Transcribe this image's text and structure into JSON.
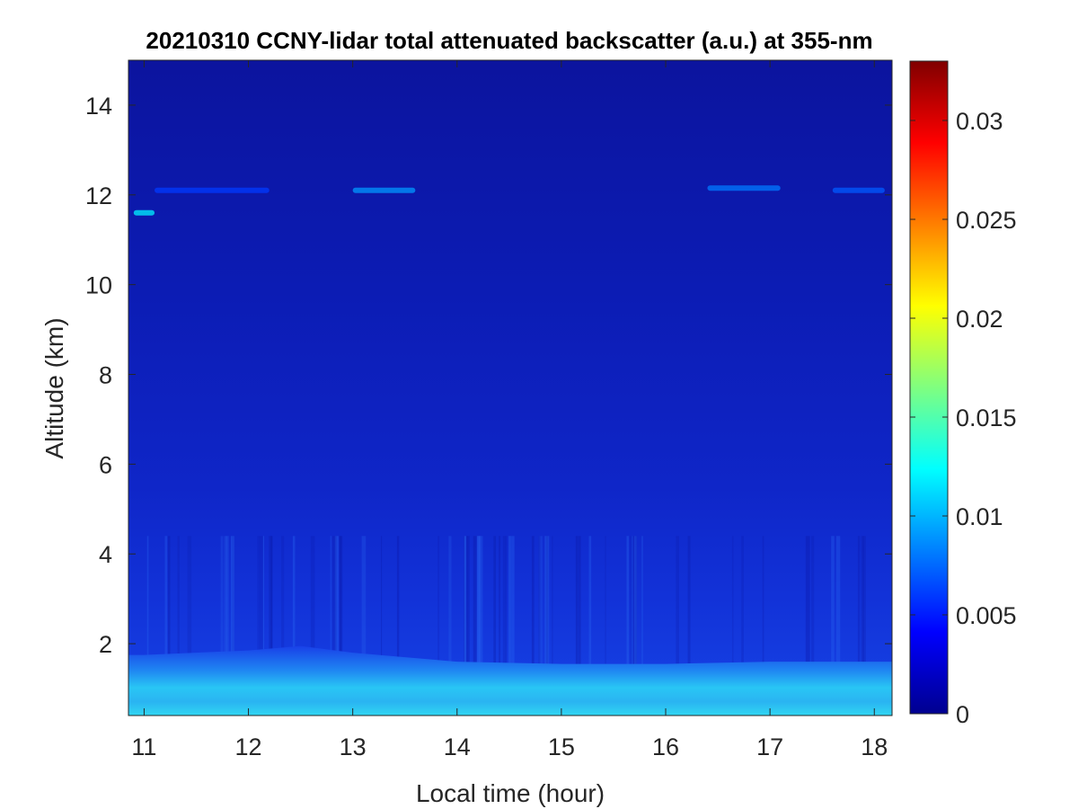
{
  "chart_data": {
    "type": "heatmap",
    "title": "20210310 CCNY-lidar total attenuated backscatter (a.u.) at 355-nm",
    "xlabel": "Local time (hour)",
    "ylabel": "Altitude (km)",
    "xlim": [
      10.85,
      18.17
    ],
    "ylim": [
      0.4,
      15.0
    ],
    "xticks": [
      11,
      12,
      13,
      14,
      15,
      16,
      17,
      18
    ],
    "xtick_labels": [
      "11",
      "12",
      "13",
      "14",
      "15",
      "16",
      "17",
      "18"
    ],
    "yticks": [
      2,
      4,
      6,
      8,
      10,
      12,
      14
    ],
    "ytick_labels": [
      "2",
      "4",
      "6",
      "8",
      "10",
      "12",
      "14"
    ],
    "grid": false,
    "colormap": "jet",
    "colorbar": {
      "range": [
        0,
        0.033
      ],
      "ticks": [
        0,
        0.005,
        0.01,
        0.015,
        0.02,
        0.025,
        0.03
      ],
      "tick_labels": [
        "0",
        "0.005",
        "0.01",
        "0.015",
        "0.02",
        "0.025",
        "0.03"
      ],
      "position": "right"
    },
    "boundary_layer_top_km": [
      {
        "time": 11.0,
        "altitude": 1.75
      },
      {
        "time": 12.0,
        "altitude": 1.85
      },
      {
        "time": 12.5,
        "altitude": 1.95
      },
      {
        "time": 13.0,
        "altitude": 1.8
      },
      {
        "time": 14.0,
        "altitude": 1.6
      },
      {
        "time": 15.0,
        "altitude": 1.55
      },
      {
        "time": 16.0,
        "altitude": 1.55
      },
      {
        "time": 17.0,
        "altitude": 1.6
      },
      {
        "time": 18.0,
        "altitude": 1.6
      }
    ],
    "cirrus_layers": [
      {
        "t_start": 10.9,
        "t_end": 11.1,
        "altitude": 11.6,
        "value": 0.012
      },
      {
        "t_start": 11.1,
        "t_end": 12.2,
        "altitude": 12.1,
        "value": 0.006
      },
      {
        "t_start": 13.0,
        "t_end": 13.6,
        "altitude": 12.1,
        "value": 0.009
      },
      {
        "t_start": 16.4,
        "t_end": 17.1,
        "altitude": 12.15,
        "value": 0.008
      },
      {
        "t_start": 17.6,
        "t_end": 18.1,
        "altitude": 12.1,
        "value": 0.007
      }
    ],
    "colors": {
      "background_low": "#0a0ea6",
      "aerosol_mid": "#1c5af0",
      "boundary_layer": "#2ad0f0"
    }
  }
}
